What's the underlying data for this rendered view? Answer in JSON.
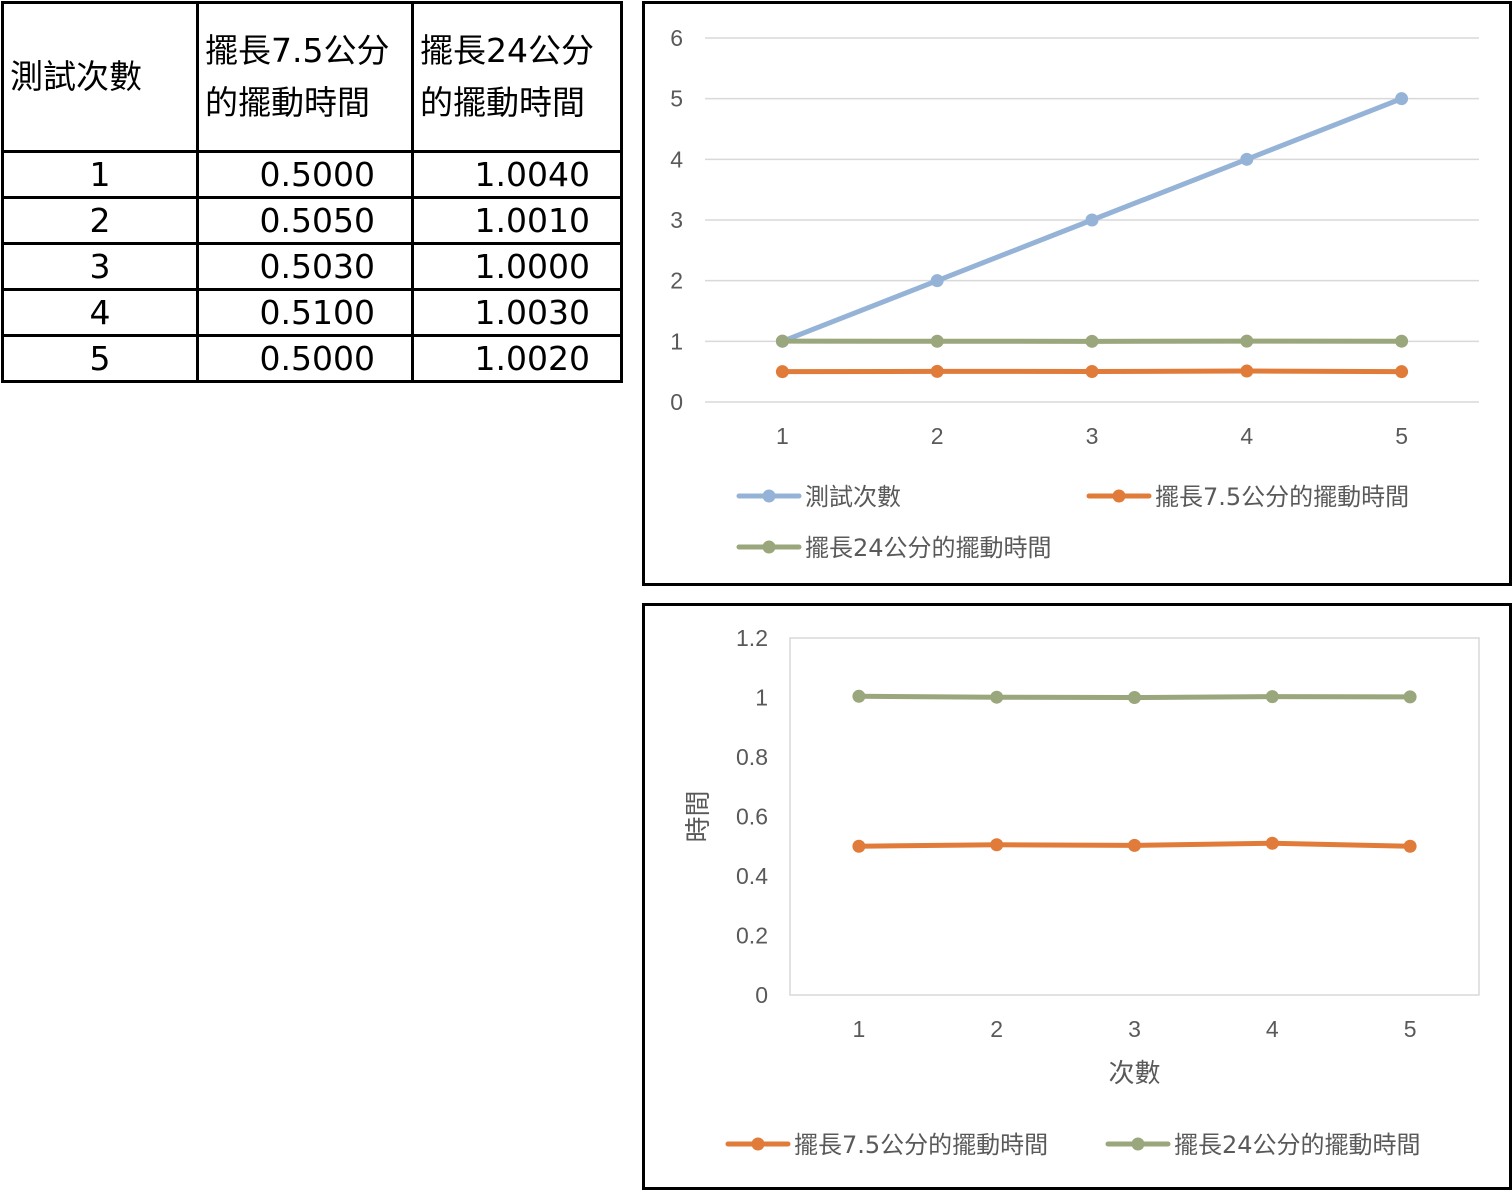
{
  "table": {
    "headers": [
      [
        "測試次數"
      ],
      [
        "擺長7.5公分",
        "的擺動時間"
      ],
      [
        "擺長24公分",
        "的擺動時間"
      ]
    ],
    "rows": [
      [
        "1",
        "0.5000",
        "1.0040"
      ],
      [
        "2",
        "0.5050",
        "1.0010"
      ],
      [
        "3",
        "0.5030",
        "1.0000"
      ],
      [
        "4",
        "0.5100",
        "1.0030"
      ],
      [
        "5",
        "0.5000",
        "1.0020"
      ]
    ]
  },
  "chart_data": [
    {
      "type": "line",
      "title": "",
      "xlabel": "",
      "ylabel": "",
      "categories": [
        "1",
        "2",
        "3",
        "4",
        "5"
      ],
      "ylim": [
        0,
        6
      ],
      "yticks": [
        "0",
        "1",
        "2",
        "3",
        "4",
        "5",
        "6"
      ],
      "grid": true,
      "legend": "bottom",
      "series": [
        {
          "name": "測試次數",
          "values": [
            1,
            2,
            3,
            4,
            5
          ],
          "color": "#95b3d7"
        },
        {
          "name": "擺長7.5公分的擺動時間",
          "values": [
            0.5,
            0.505,
            0.503,
            0.51,
            0.5
          ],
          "color": "#e07b39"
        },
        {
          "name": "擺長24公分的擺動時間",
          "values": [
            1.004,
            1.001,
            1.0,
            1.003,
            1.002
          ],
          "color": "#9aa67b"
        }
      ]
    },
    {
      "type": "line",
      "title": "",
      "xlabel": "次數",
      "ylabel": "時間",
      "categories": [
        "1",
        "2",
        "3",
        "4",
        "5"
      ],
      "ylim": [
        0,
        1.2
      ],
      "yticks": [
        "0",
        "0.2",
        "0.4",
        "0.6",
        "0.8",
        "1",
        "1.2"
      ],
      "grid": false,
      "legend": "bottom",
      "series": [
        {
          "name": "擺長7.5公分的擺動時間",
          "values": [
            0.5,
            0.505,
            0.503,
            0.51,
            0.5
          ],
          "color": "#e07b39"
        },
        {
          "name": "擺長24公分的擺動時間",
          "values": [
            1.004,
            1.001,
            1.0,
            1.003,
            1.002
          ],
          "color": "#9aa67b"
        }
      ]
    }
  ]
}
